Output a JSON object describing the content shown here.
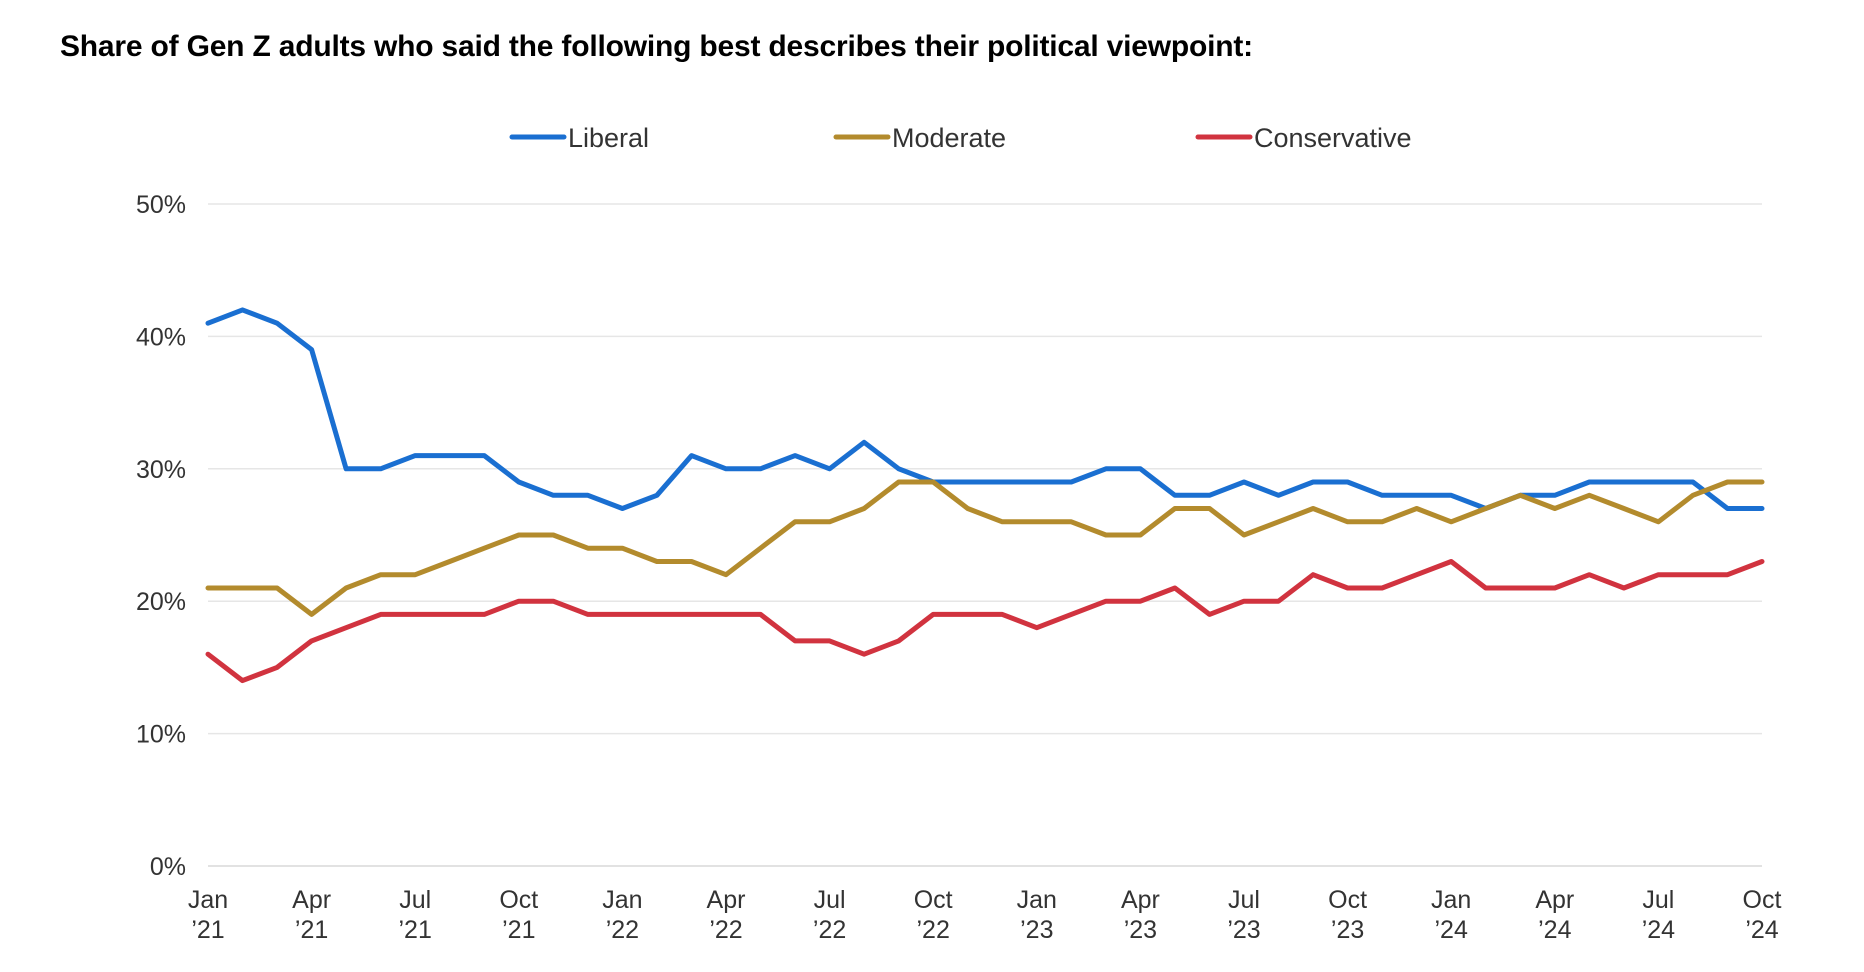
{
  "title": "Share of Gen Z adults who said the following best describes their political viewpoint:",
  "chart_data": {
    "type": "line",
    "title": "Share of Gen Z adults who said the following best describes their political viewpoint:",
    "xlabel": "",
    "ylabel": "",
    "ylim": [
      0,
      50
    ],
    "yticks": [
      0,
      10,
      20,
      30,
      40,
      50
    ],
    "ytick_labels": [
      "0%",
      "10%",
      "20%",
      "30%",
      "40%",
      "50%"
    ],
    "grid": "horizontal",
    "legend_position": "top-center",
    "x": [
      "Jan 2021",
      "Feb 2021",
      "Mar 2021",
      "Apr 2021",
      "May 2021",
      "Jun 2021",
      "Jul 2021",
      "Aug 2021",
      "Sep 2021",
      "Oct 2021",
      "Nov 2021",
      "Dec 2021",
      "Jan 2022",
      "Feb 2022",
      "Mar 2022",
      "Apr 2022",
      "May 2022",
      "Jun 2022",
      "Jul 2022",
      "Aug 2022",
      "Sep 2022",
      "Oct 2022",
      "Nov 2022",
      "Dec 2022",
      "Jan 2023",
      "Feb 2023",
      "Mar 2023",
      "Apr 2023",
      "May 2023",
      "Jun 2023",
      "Jul 2023",
      "Aug 2023",
      "Sep 2023",
      "Oct 2023",
      "Nov 2023",
      "Dec 2023",
      "Jan 2024",
      "Feb 2024",
      "Mar 2024",
      "Apr 2024",
      "May 2024",
      "Jun 2024",
      "Jul 2024",
      "Aug 2024",
      "Sep 2024",
      "Oct 2024"
    ],
    "xtick_labels": [
      {
        "index": 0,
        "line1": "Jan",
        "line2": "’21"
      },
      {
        "index": 3,
        "line1": "Apr",
        "line2": "’21"
      },
      {
        "index": 6,
        "line1": "Jul",
        "line2": "’21"
      },
      {
        "index": 9,
        "line1": "Oct",
        "line2": "’21"
      },
      {
        "index": 12,
        "line1": "Jan",
        "line2": "’22"
      },
      {
        "index": 15,
        "line1": "Apr",
        "line2": "’22"
      },
      {
        "index": 18,
        "line1": "Jul",
        "line2": "’22"
      },
      {
        "index": 21,
        "line1": "Oct",
        "line2": "’22"
      },
      {
        "index": 24,
        "line1": "Jan",
        "line2": "’23"
      },
      {
        "index": 27,
        "line1": "Apr",
        "line2": "’23"
      },
      {
        "index": 30,
        "line1": "Jul",
        "line2": "’23"
      },
      {
        "index": 33,
        "line1": "Oct",
        "line2": "’23"
      },
      {
        "index": 36,
        "line1": "Jan",
        "line2": "’24"
      },
      {
        "index": 39,
        "line1": "Apr",
        "line2": "’24"
      },
      {
        "index": 42,
        "line1": "Jul",
        "line2": "’24"
      },
      {
        "index": 45,
        "line1": "Oct",
        "line2": "’24"
      }
    ],
    "series": [
      {
        "name": "Liberal",
        "color": "#1a6fd1",
        "values": [
          41,
          42,
          41,
          39,
          30,
          30,
          31,
          31,
          31,
          29,
          28,
          28,
          27,
          28,
          31,
          30,
          30,
          31,
          30,
          32,
          30,
          29,
          29,
          29,
          29,
          29,
          30,
          30,
          28,
          28,
          29,
          28,
          29,
          29,
          28,
          28,
          28,
          27,
          28,
          28,
          29,
          29,
          29,
          29,
          27,
          27
        ]
      },
      {
        "name": "Moderate",
        "color": "#b38b2d",
        "values": [
          21,
          21,
          21,
          19,
          21,
          22,
          22,
          23,
          24,
          25,
          25,
          24,
          24,
          23,
          23,
          22,
          24,
          26,
          26,
          27,
          29,
          29,
          27,
          26,
          26,
          26,
          25,
          25,
          27,
          27,
          25,
          26,
          27,
          26,
          26,
          27,
          26,
          27,
          28,
          27,
          28,
          27,
          26,
          28,
          29,
          29
        ]
      },
      {
        "name": "Conservative",
        "color": "#d1333f",
        "values": [
          16,
          14,
          15,
          17,
          18,
          19,
          19,
          19,
          19,
          20,
          20,
          19,
          19,
          19,
          19,
          19,
          19,
          17,
          17,
          16,
          17,
          19,
          19,
          19,
          18,
          19,
          20,
          20,
          21,
          19,
          20,
          20,
          22,
          21,
          21,
          22,
          23,
          21,
          21,
          21,
          22,
          21,
          22,
          22,
          22,
          23
        ]
      }
    ]
  }
}
